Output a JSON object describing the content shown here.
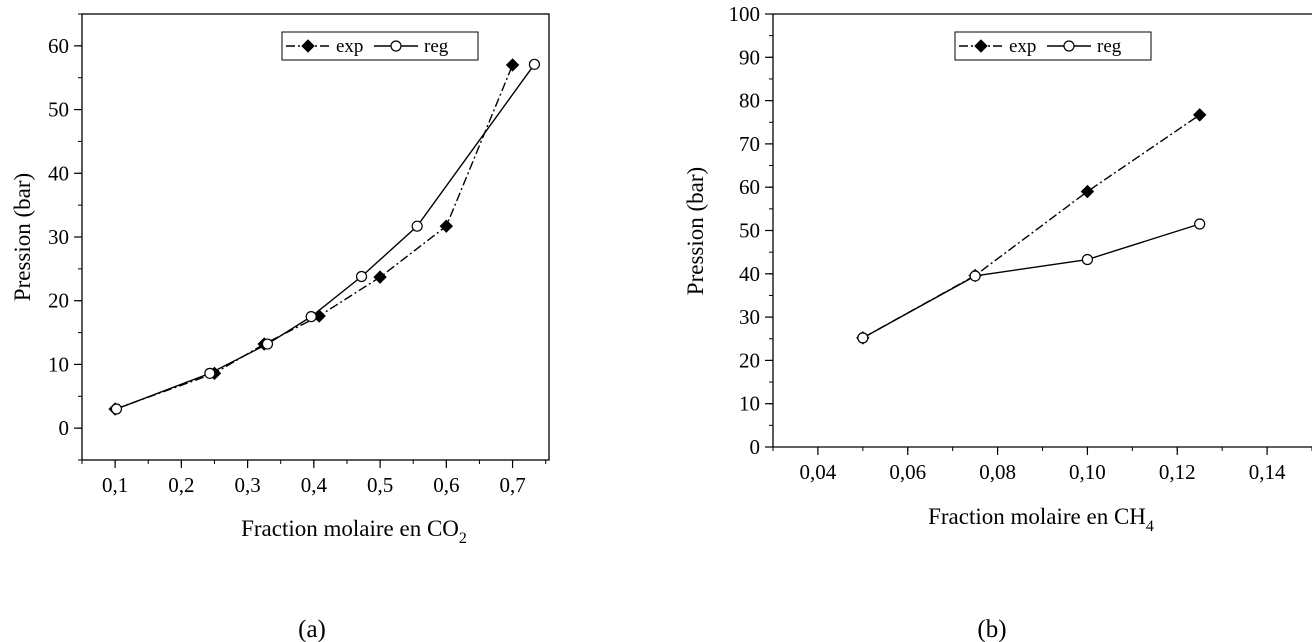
{
  "chart_data": [
    {
      "type": "line",
      "caption": "(a)",
      "xlabel": "Fraction molaire en CO",
      "xlabel_sub": "2",
      "ylabel": "Pression (bar)",
      "xlim": [
        0.05,
        0.755
      ],
      "ylim": [
        -5,
        65
      ],
      "xticks": [
        0.1,
        0.2,
        0.3,
        0.4,
        0.5,
        0.6,
        0.7
      ],
      "xtick_labels": [
        "0,1",
        "0,2",
        "0,3",
        "0,4",
        "0,5",
        "0,6",
        "0,7"
      ],
      "yticks": [
        0,
        10,
        20,
        30,
        40,
        50,
        60
      ],
      "ytick_labels": [
        "0",
        "10",
        "20",
        "30",
        "40",
        "50",
        "60"
      ],
      "legend": "top-center",
      "grid": false,
      "series": [
        {
          "name": "exp",
          "style": "dash-dot",
          "marker": "filled-diamond",
          "x": [
            0.1,
            0.25,
            0.325,
            0.408,
            0.5,
            0.6,
            0.7
          ],
          "y": [
            3.0,
            8.6,
            13.2,
            17.6,
            23.7,
            31.7,
            57.0
          ]
        },
        {
          "name": "reg",
          "style": "solid",
          "marker": "open-circle",
          "x": [
            0.102,
            0.243,
            0.33,
            0.396,
            0.472,
            0.556,
            0.733
          ],
          "y": [
            3.0,
            8.6,
            13.2,
            17.5,
            23.8,
            31.7,
            57.1
          ]
        }
      ]
    },
    {
      "type": "line",
      "caption": "(b)",
      "xlabel": "Fraction molaire en CH",
      "xlabel_sub": "4",
      "ylabel": "Pression (bar)",
      "xlim": [
        0.03,
        0.15
      ],
      "ylim": [
        0,
        100
      ],
      "xticks": [
        0.04,
        0.06,
        0.08,
        0.1,
        0.12,
        0.14
      ],
      "xtick_labels": [
        "0,04",
        "0,06",
        "0,08",
        "0,10",
        "0,12",
        "0,14"
      ],
      "yticks": [
        0,
        10,
        20,
        30,
        40,
        50,
        60,
        70,
        80,
        90,
        100
      ],
      "ytick_labels": [
        "0",
        "10",
        "20",
        "30",
        "40",
        "50",
        "60",
        "70",
        "80",
        "90",
        "100"
      ],
      "legend": "top-center",
      "grid": false,
      "series": [
        {
          "name": "exp",
          "style": "dash-dot",
          "marker": "filled-diamond",
          "x": [
            0.05,
            0.075,
            0.1,
            0.125
          ],
          "y": [
            25.2,
            39.6,
            59.0,
            76.7
          ]
        },
        {
          "name": "reg",
          "style": "solid",
          "marker": "open-circle",
          "x": [
            0.05,
            0.075,
            0.1,
            0.125
          ],
          "y": [
            25.2,
            39.5,
            43.3,
            51.5
          ]
        }
      ]
    }
  ]
}
